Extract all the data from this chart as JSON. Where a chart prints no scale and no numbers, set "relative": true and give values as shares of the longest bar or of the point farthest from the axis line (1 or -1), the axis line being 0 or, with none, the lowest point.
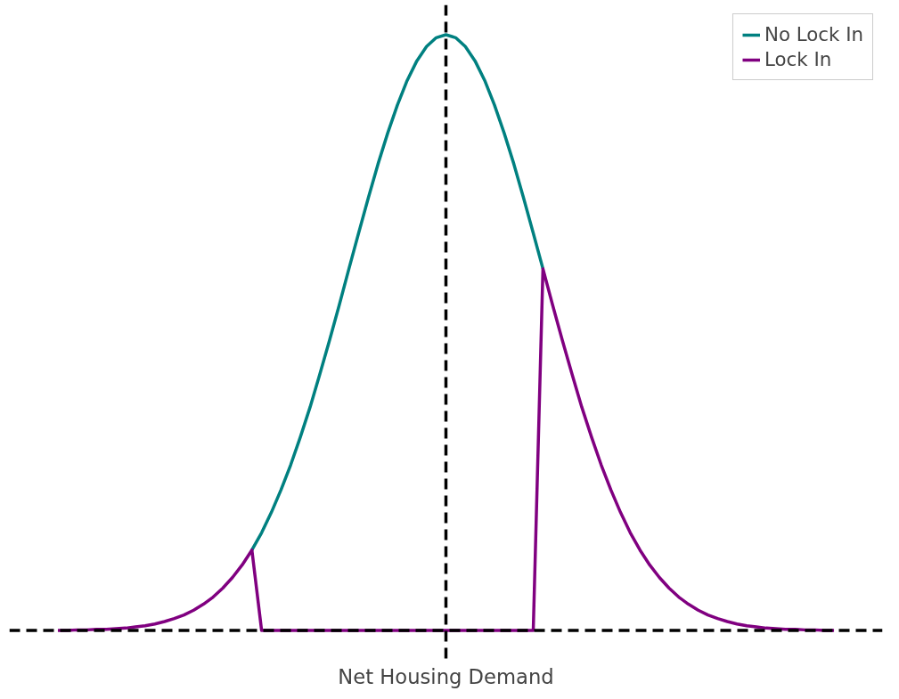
{
  "chart_data": {
    "type": "line",
    "relative": true,
    "xlabel": "Net Housing Demand",
    "legend": "top right",
    "categories": [
      null,
      null,
      null,
      null,
      null,
      null,
      null,
      null,
      null,
      null,
      null,
      null,
      null,
      null,
      null,
      null,
      null,
      null,
      null,
      null,
      null,
      null,
      null,
      null,
      null,
      null,
      null,
      null,
      null,
      null,
      null,
      null,
      null,
      null,
      null,
      null,
      null,
      null,
      null,
      null,
      null,
      null,
      null,
      null,
      null,
      null,
      null,
      null,
      null,
      null,
      null,
      null,
      null,
      null,
      null,
      null,
      null,
      null,
      null,
      null,
      null,
      null,
      null,
      null,
      null,
      null,
      null,
      null,
      null,
      null,
      null,
      null,
      null,
      null,
      null,
      null,
      null,
      null,
      null,
      null,
      null
    ],
    "series": [
      {
        "name": "No Lock In",
        "color": "#008080",
        "values": [
          null,
          null,
          null,
          null,
          null,
          null,
          null,
          null,
          null,
          null,
          null,
          null,
          null,
          null,
          null,
          null,
          null,
          null,
          null,
          null,
          0.135,
          0.164,
          0.198,
          0.236,
          0.278,
          0.325,
          0.375,
          0.43,
          0.487,
          0.546,
          0.607,
          0.667,
          0.726,
          0.783,
          0.835,
          0.882,
          0.923,
          0.956,
          0.98,
          0.995,
          1,
          0.995,
          0.98,
          0.956,
          0.923,
          0.882,
          0.835,
          0.783,
          0.726,
          0.667,
          0.607,
          null,
          null,
          null,
          null,
          null,
          null,
          null,
          null,
          null,
          null,
          null,
          null,
          null,
          null,
          null,
          null,
          null,
          null,
          null,
          null,
          null,
          null,
          null,
          null,
          null,
          null,
          null,
          null,
          null,
          null
        ]
      },
      {
        "name": "Lock In",
        "color": "#800080",
        "values": [
          0.0,
          0.0,
          0.001,
          0.001,
          0.002,
          0.002,
          0.003,
          0.004,
          0.006,
          0.008,
          0.011,
          0.015,
          0.02,
          0.026,
          0.034,
          0.044,
          0.056,
          0.071,
          0.089,
          0.11,
          0.135,
          0,
          0,
          0,
          0,
          0,
          0,
          0,
          0,
          0,
          0,
          0,
          0,
          0,
          0,
          0,
          0,
          0,
          0,
          0,
          0,
          0,
          0,
          0,
          0,
          0,
          0,
          0,
          0,
          0,
          0.607,
          0.546,
          0.487,
          0.43,
          0.375,
          0.325,
          0.278,
          0.236,
          0.198,
          0.164,
          0.135,
          0.11,
          0.089,
          0.071,
          0.056,
          0.044,
          0.034,
          0.026,
          0.02,
          0.015,
          0.011,
          0.008,
          0.006,
          0.004,
          0.003,
          0.002,
          0.002,
          0.001,
          0.001,
          0.0,
          0.0
        ]
      }
    ]
  }
}
